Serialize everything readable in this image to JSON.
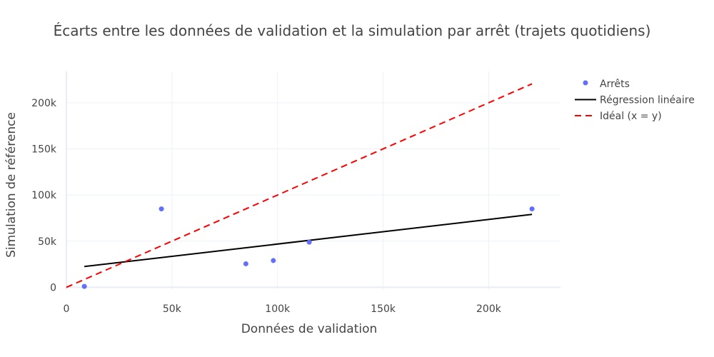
{
  "chart_data": {
    "type": "scatter",
    "title": "Écarts entre les données de validation et la simulation par arrêt (trajets quotidiens)",
    "xlabel": "Données de validation",
    "ylabel": "Simulation de référence",
    "xlim": [
      0,
      234000
    ],
    "ylim": [
      -2000,
      234000
    ],
    "x_ticks": [
      0,
      50000,
      100000,
      150000,
      200000
    ],
    "x_tick_labels": [
      "0",
      "50k",
      "100k",
      "150k",
      "200k"
    ],
    "y_ticks": [
      0,
      50000,
      100000,
      150000,
      200000
    ],
    "y_tick_labels": [
      "0",
      "50k",
      "100k",
      "150k",
      "200k"
    ],
    "grid": true,
    "legend_position": "top-right",
    "series": [
      {
        "name": "Arrêts",
        "mode": "markers",
        "color": "#636efa",
        "x": [
          8500,
          45000,
          85000,
          98000,
          115000,
          220500
        ],
        "y": [
          1000,
          85000,
          25500,
          29000,
          49000,
          85000
        ]
      },
      {
        "name": "Régression linéaire",
        "mode": "line",
        "color": "#000000",
        "dash": "solid",
        "x": [
          8500,
          220500
        ],
        "y": [
          22500,
          79000
        ]
      },
      {
        "name": "Idéal (x = y)",
        "mode": "line",
        "color": "#ff0000",
        "dash": "dashed",
        "x": [
          0,
          220500
        ],
        "y": [
          0,
          220500
        ]
      }
    ]
  }
}
